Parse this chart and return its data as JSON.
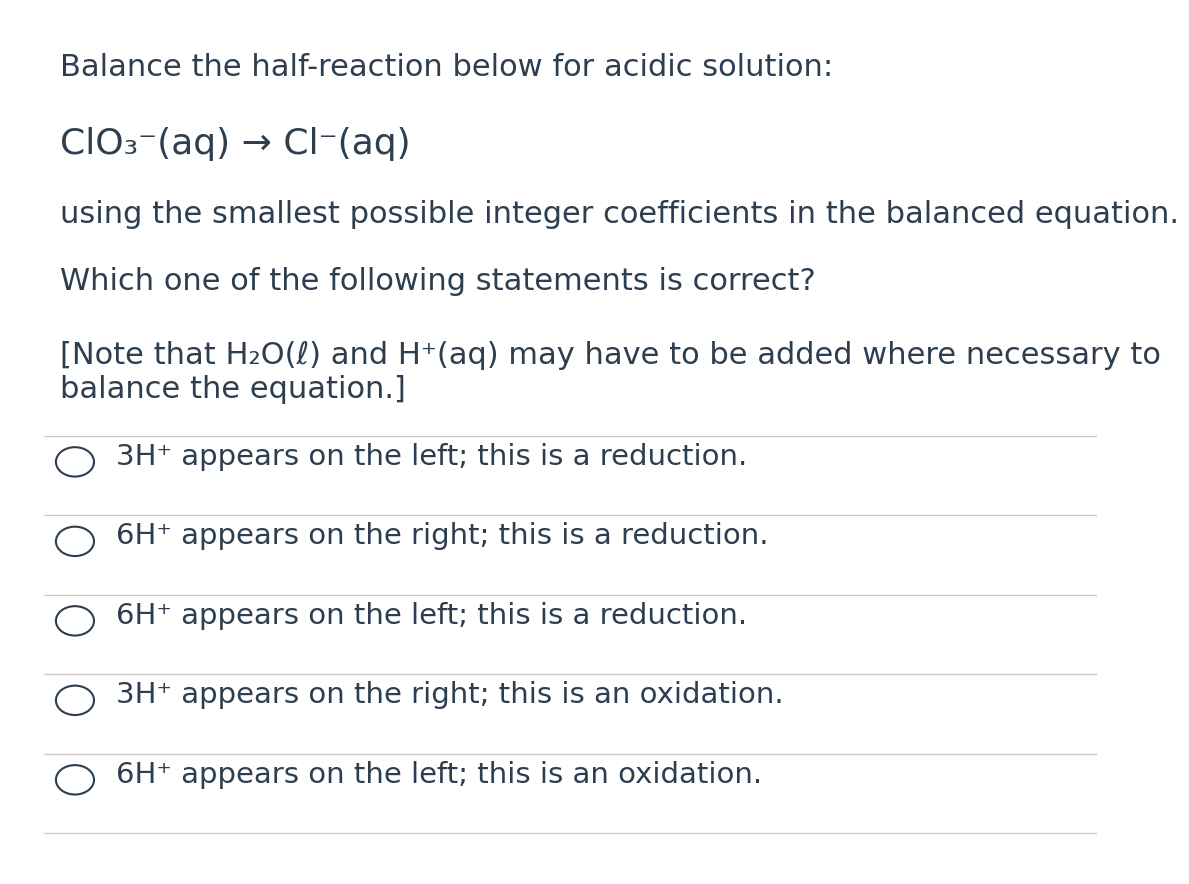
{
  "background_color": "#ffffff",
  "text_color": "#2d3e50",
  "title_line": "Balance the half-reaction below for acidic solution:",
  "equation": "ClO₃⁻(aq) → Cl⁻(aq)",
  "subtitle_lines": [
    "using the smallest possible integer coefficients in the balanced equation.",
    "Which one of the following statements is correct?",
    "[Note that H₂O(ℓ) and H⁺(aq) may have to be added where necessary to\nbalance the equation.]"
  ],
  "options": [
    "3H⁺ appears on the left; this is a reduction.",
    "6H⁺ appears on the right; this is a reduction.",
    "6H⁺ appears on the left; this is a reduction.",
    "3H⁺ appears on the right; this is an oxidation.",
    "6H⁺ appears on the left; this is an oxidation."
  ],
  "font_size_main": 22,
  "font_size_equation": 26,
  "font_size_options": 21,
  "line_color": "#cccccc",
  "circle_color": "#2d3e50"
}
